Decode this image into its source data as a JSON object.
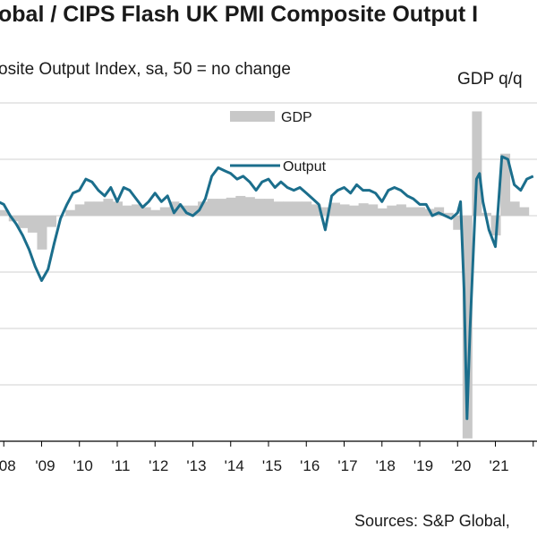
{
  "header": {
    "title": "obal / CIPS Flash UK PMI Composite Output I",
    "subtitle": "osite  Output  Index, sa, 50 = no change",
    "gdp_axis_label": "GDP q/q",
    "source": "Sources: S&P Global,"
  },
  "chart_data": {
    "type": "line",
    "title": "obal / CIPS Flash UK PMI Composite Output I",
    "subtitle": "osite  Output  Index, sa, 50 = no change",
    "right_axis_label": "GDP q/q",
    "xlabel": "",
    "ylabel": "",
    "grid": true,
    "legend_position": "top-center",
    "x_ticks": [
      "08",
      "'09",
      "'10",
      "'11",
      "'12",
      "'13",
      "'14",
      "'15",
      "'16",
      "'17",
      "'18",
      "'19",
      "'20",
      "'21"
    ],
    "xlim": [
      2007.9,
      2022.1
    ],
    "ylim": [
      10,
      70
    ],
    "colors": {
      "GDP": "#c8c8c8",
      "Output": "#1b6e8c",
      "grid": "#d0d0d0",
      "axis": "#000000"
    },
    "series": [
      {
        "name": "GDP",
        "kind": "bar",
        "x": [
          2008.0,
          2008.25,
          2008.5,
          2008.75,
          2009.0,
          2009.25,
          2009.5,
          2009.75,
          2010.0,
          2010.25,
          2010.5,
          2010.75,
          2011.0,
          2011.25,
          2011.5,
          2011.75,
          2012.0,
          2012.25,
          2012.5,
          2012.75,
          2013.0,
          2013.25,
          2013.5,
          2013.75,
          2014.0,
          2014.25,
          2014.5,
          2014.75,
          2015.0,
          2015.25,
          2015.5,
          2015.75,
          2016.0,
          2016.25,
          2016.5,
          2016.75,
          2017.0,
          2017.25,
          2017.5,
          2017.75,
          2018.0,
          2018.25,
          2018.5,
          2018.75,
          2019.0,
          2019.25,
          2019.5,
          2019.75,
          2020.0,
          2020.25,
          2020.5,
          2020.75,
          2021.0,
          2021.25,
          2021.5,
          2021.75
        ],
        "values": [
          51.0,
          49.0,
          47.8,
          47.0,
          44.0,
          48.0,
          50.0,
          51.0,
          52.0,
          52.5,
          52.5,
          53.0,
          52.5,
          51.8,
          52.0,
          51.5,
          51.0,
          51.5,
          52.5,
          51.8,
          51.8,
          52.5,
          53.0,
          53.0,
          53.2,
          53.5,
          53.3,
          53.0,
          53.0,
          52.5,
          52.5,
          52.5,
          52.5,
          52.0,
          51.5,
          52.3,
          52.0,
          51.8,
          52.2,
          52.0,
          51.3,
          51.8,
          52.0,
          51.5,
          51.5,
          51.2,
          51.5,
          50.5,
          47.5,
          10.5,
          68.5,
          50.5,
          46.5,
          61.0,
          52.5,
          51.5
        ]
      },
      {
        "name": "Output",
        "kind": "line",
        "x": [
          2007.85,
          2008.0,
          2008.17,
          2008.33,
          2008.5,
          2008.67,
          2008.83,
          2009.0,
          2009.17,
          2009.33,
          2009.5,
          2009.67,
          2009.83,
          2010.0,
          2010.17,
          2010.33,
          2010.5,
          2010.67,
          2010.83,
          2011.0,
          2011.17,
          2011.33,
          2011.5,
          2011.67,
          2011.83,
          2012.0,
          2012.17,
          2012.33,
          2012.5,
          2012.67,
          2012.83,
          2013.0,
          2013.17,
          2013.33,
          2013.5,
          2013.67,
          2013.83,
          2014.0,
          2014.17,
          2014.33,
          2014.5,
          2014.67,
          2014.83,
          2015.0,
          2015.17,
          2015.33,
          2015.5,
          2015.67,
          2015.83,
          2016.0,
          2016.17,
          2016.33,
          2016.5,
          2016.67,
          2016.83,
          2017.0,
          2017.17,
          2017.33,
          2017.5,
          2017.67,
          2017.83,
          2018.0,
          2018.17,
          2018.33,
          2018.5,
          2018.67,
          2018.83,
          2019.0,
          2019.17,
          2019.33,
          2019.5,
          2019.67,
          2019.83,
          2020.0,
          2020.08,
          2020.17,
          2020.25,
          2020.33,
          2020.5,
          2020.58,
          2020.67,
          2020.83,
          2021.0,
          2021.08,
          2021.17,
          2021.33,
          2021.5,
          2021.67,
          2021.83,
          2022.0
        ],
        "values": [
          52.5,
          52.0,
          50.0,
          48.5,
          46.5,
          44.0,
          41.0,
          38.5,
          40.5,
          45.0,
          49.5,
          52.0,
          54.0,
          54.5,
          56.5,
          56.0,
          54.5,
          53.5,
          55.0,
          52.5,
          55.0,
          54.5,
          53.0,
          51.5,
          52.5,
          54.0,
          52.5,
          53.5,
          50.5,
          52.0,
          50.5,
          50.0,
          51.0,
          53.0,
          57.0,
          58.5,
          58.0,
          57.5,
          56.5,
          57.0,
          56.0,
          54.5,
          56.0,
          56.5,
          55.0,
          56.0,
          55.0,
          54.5,
          55.0,
          54.0,
          53.0,
          52.0,
          47.5,
          53.5,
          54.5,
          55.0,
          54.0,
          55.5,
          54.5,
          54.5,
          54.0,
          52.5,
          54.5,
          55.0,
          54.5,
          53.5,
          53.0,
          52.0,
          52.0,
          50.0,
          50.5,
          50.0,
          49.5,
          50.5,
          52.5,
          37.0,
          14.0,
          30.0,
          56.5,
          57.5,
          52.5,
          47.5,
          44.5,
          52.0,
          60.5,
          60.0,
          55.5,
          54.5,
          56.5,
          57.0
        ]
      }
    ]
  }
}
